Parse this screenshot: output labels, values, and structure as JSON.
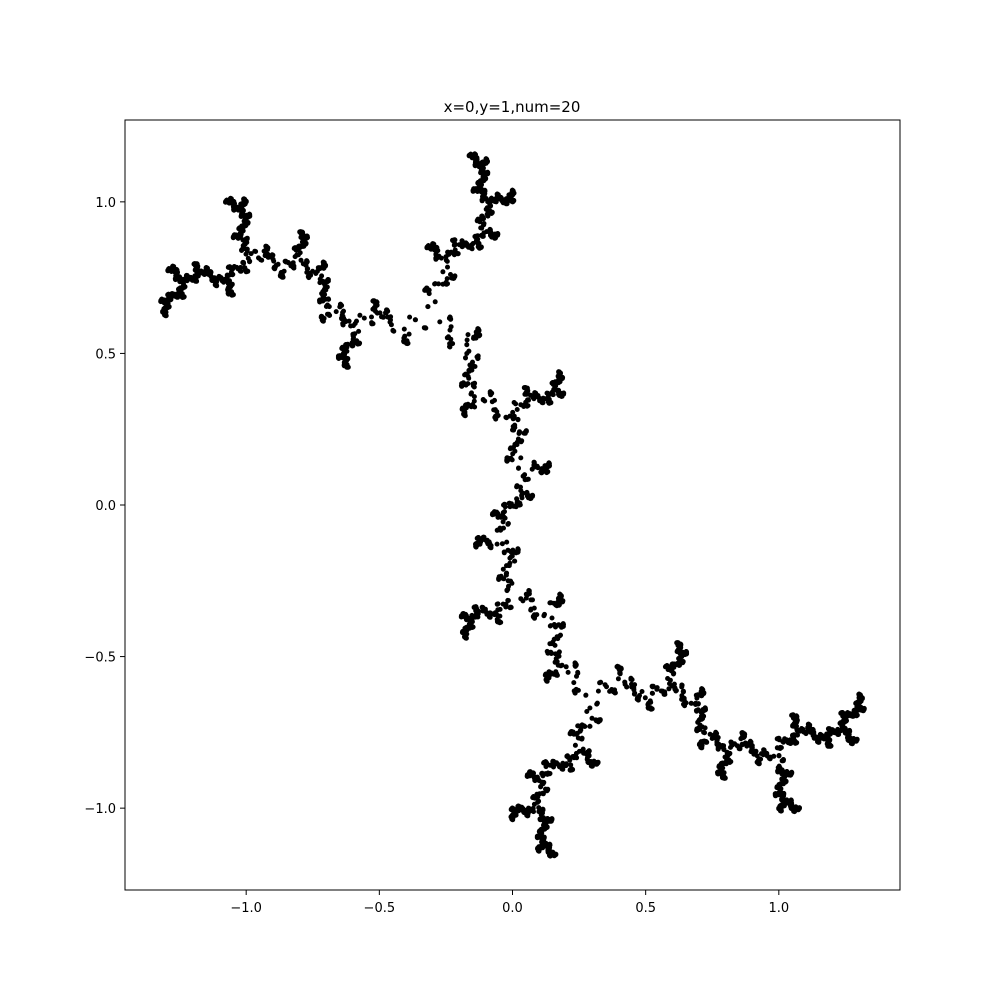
{
  "chart_data": {
    "type": "scatter",
    "title": "x=0,y=1,num=20",
    "xlabel": "",
    "ylabel": "",
    "xlim": [
      -1.455,
      1.455
    ],
    "ylim": [
      -1.27,
      1.27
    ],
    "x_ticks": [
      {
        "value": -1.0,
        "label": "−1.0"
      },
      {
        "value": -0.5,
        "label": "−0.5"
      },
      {
        "value": 0.0,
        "label": "0.0"
      },
      {
        "value": 0.5,
        "label": "0.5"
      },
      {
        "value": 1.0,
        "label": "1.0"
      }
    ],
    "y_ticks": [
      {
        "value": 1.0,
        "label": "1.0"
      },
      {
        "value": 0.5,
        "label": "0.5"
      },
      {
        "value": 0.0,
        "label": "0.0"
      },
      {
        "value": -0.5,
        "label": "−0.5"
      },
      {
        "value": -1.0,
        "label": "−1.0"
      }
    ],
    "grid": false,
    "legend": "none",
    "marker_color": "#000000",
    "julia_constant": {
      "re": 0,
      "im": 1
    },
    "iterations": 20,
    "series": [
      {
        "values_description_omitted": true
      }
    ]
  }
}
